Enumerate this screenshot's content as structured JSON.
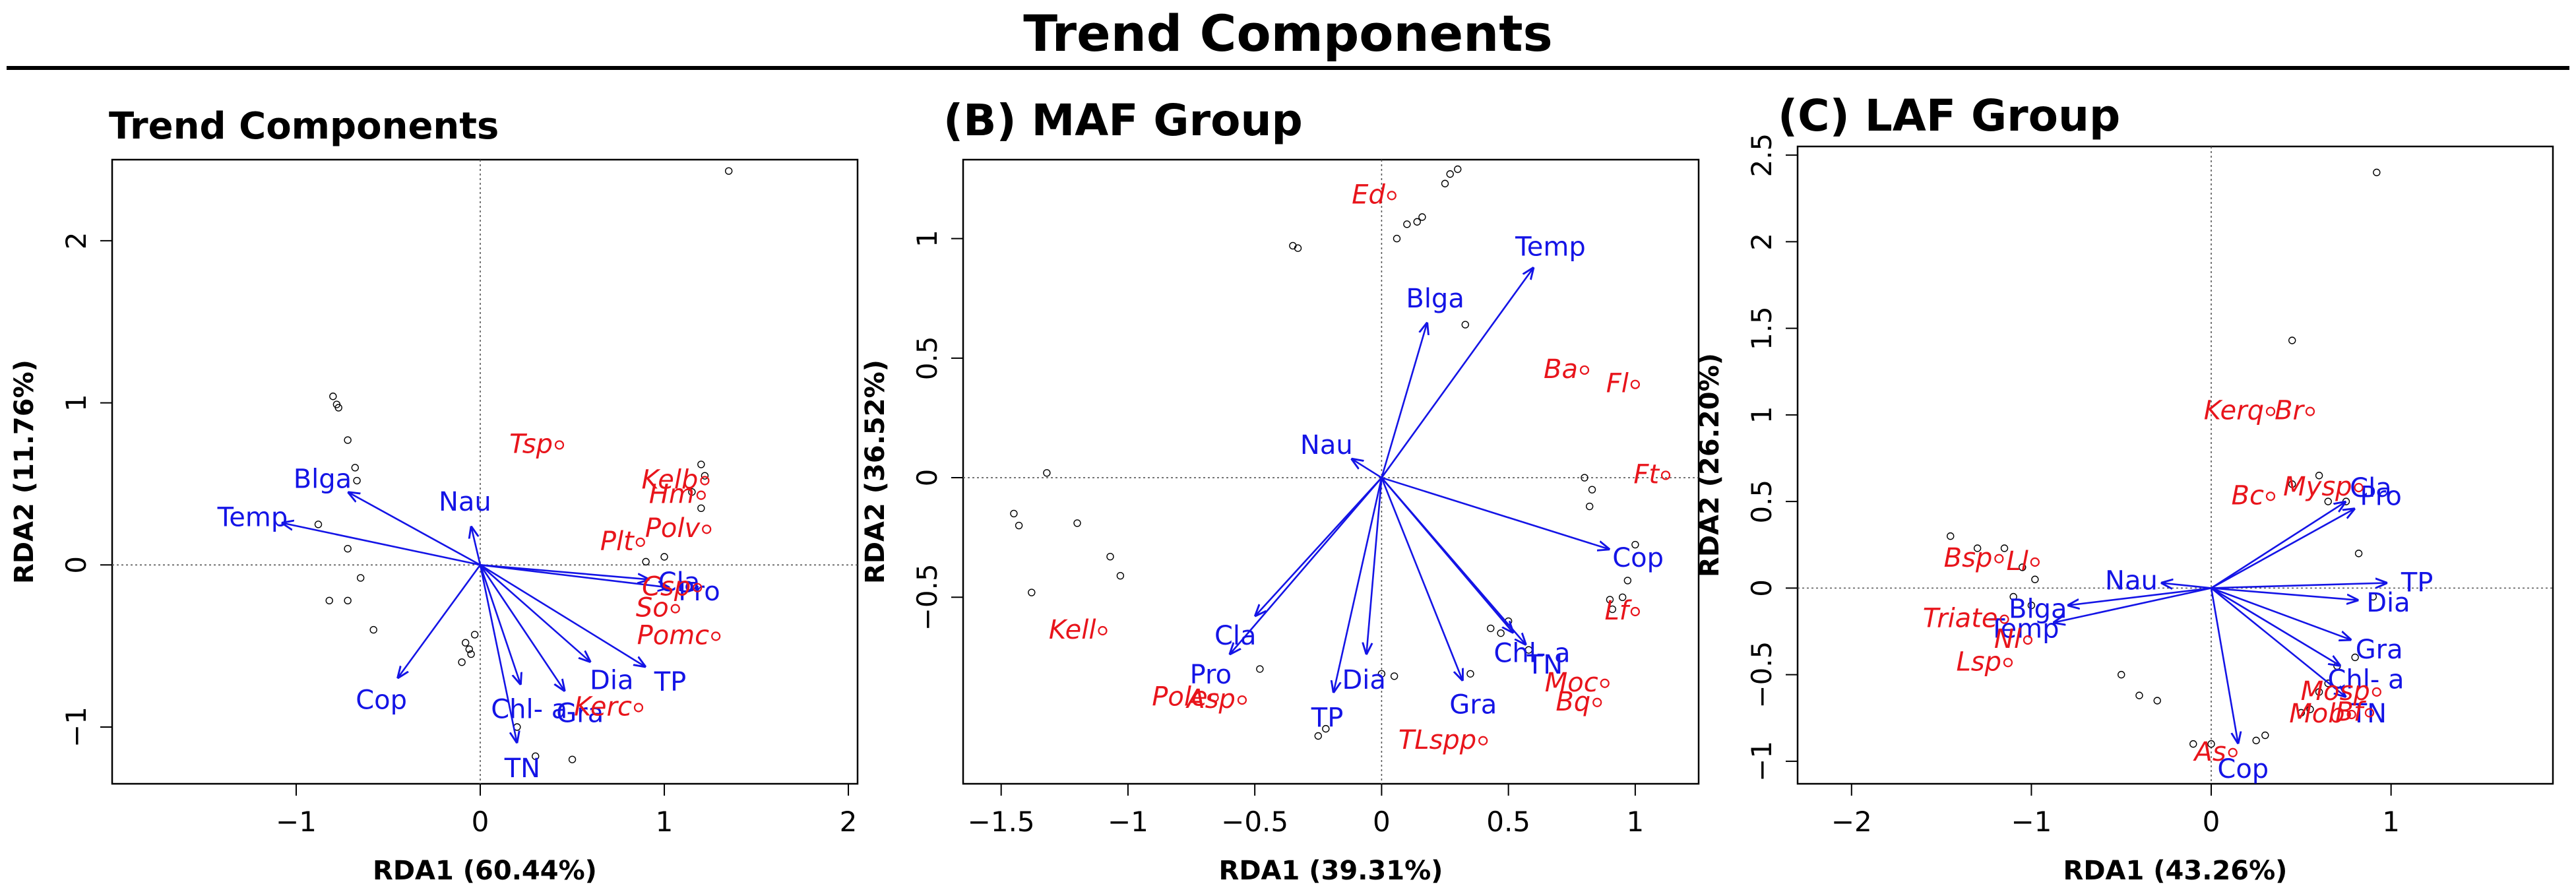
{
  "figure": {
    "title": "Trend Components",
    "colors": {
      "species": "#e8141b",
      "arrow": "#1414e6",
      "site": "#000000",
      "axis": "#000000"
    }
  },
  "chart_data": [
    {
      "type": "scatter",
      "title": "Trend Components",
      "xlabel": "RDA1 (60.44%)",
      "ylabel": "RDA2 (11.76%)",
      "xlim": [
        -2.0,
        2.05
      ],
      "ylim": [
        -1.35,
        2.5
      ],
      "xticks": [
        -1,
        0,
        1,
        2
      ],
      "yticks": [
        -1,
        0,
        1,
        2
      ],
      "reference_lines": [
        0,
        0
      ],
      "sites": [
        [
          -0.8,
          1.04
        ],
        [
          -0.78,
          0.99
        ],
        [
          -0.77,
          0.97
        ],
        [
          -0.72,
          0.77
        ],
        [
          -0.68,
          0.6
        ],
        [
          -0.67,
          0.52
        ],
        [
          -0.88,
          0.25
        ],
        [
          -0.72,
          0.1
        ],
        [
          -0.65,
          -0.08
        ],
        [
          -0.58,
          -0.4
        ],
        [
          -0.82,
          -0.22
        ],
        [
          -0.72,
          -0.22
        ],
        [
          -0.08,
          -0.48
        ],
        [
          -0.06,
          -0.52
        ],
        [
          -0.05,
          -0.55
        ],
        [
          -0.03,
          -0.43
        ],
        [
          -0.1,
          -0.6
        ],
        [
          0.2,
          -1.0
        ],
        [
          0.3,
          -1.18
        ],
        [
          0.5,
          -1.2
        ],
        [
          1.2,
          0.62
        ],
        [
          1.22,
          0.55
        ],
        [
          1.15,
          0.45
        ],
        [
          1.2,
          0.35
        ],
        [
          1.35,
          2.43
        ],
        [
          0.9,
          0.02
        ],
        [
          1.0,
          0.05
        ]
      ],
      "species": [
        {
          "label": "Tsp",
          "x": 0.43,
          "y": 0.74
        },
        {
          "label": "Kelb",
          "x": 1.22,
          "y": 0.52
        },
        {
          "label": "Hm",
          "x": 1.2,
          "y": 0.43
        },
        {
          "label": "Polv",
          "x": 1.23,
          "y": 0.22
        },
        {
          "label": "Plt",
          "x": 0.87,
          "y": 0.14
        },
        {
          "label": "Csp",
          "x": 1.18,
          "y": -0.14
        },
        {
          "label": "So",
          "x": 1.06,
          "y": -0.27
        },
        {
          "label": "Pomc",
          "x": 1.28,
          "y": -0.44
        },
        {
          "label": "Kerc",
          "x": 0.86,
          "y": -0.88
        }
      ],
      "variables": [
        {
          "label": "Blga",
          "x": -0.72,
          "y": 0.45
        },
        {
          "label": "Temp",
          "x": -1.08,
          "y": 0.26
        },
        {
          "label": "Nau",
          "x": -0.05,
          "y": 0.24
        },
        {
          "label": "Cop",
          "x": -0.45,
          "y": -0.7
        },
        {
          "label": "Cla",
          "x": 0.92,
          "y": -0.09
        },
        {
          "label": "Pro",
          "x": 1.03,
          "y": -0.14
        },
        {
          "label": "Chl- a",
          "x": 0.22,
          "y": -0.74
        },
        {
          "label": "Dia",
          "x": 0.6,
          "y": -0.6
        },
        {
          "label": "TP",
          "x": 0.9,
          "y": -0.63
        },
        {
          "label": "Gra",
          "x": 0.46,
          "y": -0.78
        },
        {
          "label": "TN",
          "x": 0.2,
          "y": -1.1
        }
      ]
    },
    {
      "type": "scatter",
      "title": "(B) MAF Group",
      "xlabel": "RDA1 (39.31%)",
      "ylabel": "RDA2 (36.52%)",
      "xlim": [
        -1.65,
        1.25
      ],
      "ylim": [
        -1.28,
        1.33
      ],
      "xticks": [
        -1.5,
        -1.0,
        -0.5,
        0.0,
        0.5,
        1.0
      ],
      "yticks": [
        -0.5,
        0.0,
        0.5,
        1.0
      ],
      "reference_lines": [
        0,
        0
      ],
      "sites": [
        [
          -1.32,
          0.02
        ],
        [
          -1.45,
          -0.15
        ],
        [
          -1.43,
          -0.2
        ],
        [
          -1.2,
          -0.19
        ],
        [
          -1.07,
          -0.33
        ],
        [
          -1.03,
          -0.41
        ],
        [
          -1.38,
          -0.48
        ],
        [
          -0.35,
          0.97
        ],
        [
          -0.33,
          0.96
        ],
        [
          0.06,
          1.0
        ],
        [
          0.1,
          1.06
        ],
        [
          0.14,
          1.07
        ],
        [
          0.16,
          1.09
        ],
        [
          0.25,
          1.23
        ],
        [
          0.27,
          1.27
        ],
        [
          0.3,
          1.29
        ],
        [
          0.33,
          0.64
        ],
        [
          0.0,
          -0.82
        ],
        [
          0.05,
          -0.83
        ],
        [
          -0.48,
          -0.8
        ],
        [
          -0.25,
          -1.08
        ],
        [
          -0.22,
          -1.05
        ],
        [
          0.35,
          -0.82
        ],
        [
          0.43,
          -0.63
        ],
        [
          0.5,
          -0.6
        ],
        [
          0.47,
          -0.65
        ],
        [
          0.58,
          -0.72
        ],
        [
          0.9,
          -0.51
        ],
        [
          0.91,
          -0.55
        ],
        [
          0.97,
          -0.43
        ],
        [
          1.0,
          -0.28
        ],
        [
          0.95,
          -0.5
        ],
        [
          0.8,
          0.0
        ],
        [
          0.83,
          -0.05
        ],
        [
          0.82,
          -0.12
        ]
      ],
      "species": [
        {
          "label": "Ed",
          "x": 0.04,
          "y": 1.18
        },
        {
          "label": "Ba",
          "x": 0.8,
          "y": 0.45
        },
        {
          "label": "Fl",
          "x": 1.0,
          "y": 0.39
        },
        {
          "label": "Ft",
          "x": 1.12,
          "y": 0.01
        },
        {
          "label": "Lf",
          "x": 1.0,
          "y": -0.56
        },
        {
          "label": "Moc",
          "x": 0.88,
          "y": -0.86
        },
        {
          "label": "Bq",
          "x": 0.85,
          "y": -0.94
        },
        {
          "label": "Kell",
          "x": -1.1,
          "y": -0.64
        },
        {
          "label": "Pole",
          "x": -0.66,
          "y": -0.92
        },
        {
          "label": "Asp",
          "x": -0.55,
          "y": -0.93
        },
        {
          "label": "TLspp",
          "x": 0.4,
          "y": -1.1
        }
      ],
      "variables": [
        {
          "label": "Blga",
          "x": 0.18,
          "y": 0.65
        },
        {
          "label": "Temp",
          "x": 0.6,
          "y": 0.88
        },
        {
          "label": "Nau",
          "x": -0.12,
          "y": 0.08
        },
        {
          "label": "Cop",
          "x": 0.9,
          "y": -0.3
        },
        {
          "label": "Cla",
          "x": -0.5,
          "y": -0.58
        },
        {
          "label": "Pro",
          "x": -0.6,
          "y": -0.74
        },
        {
          "label": "Dia",
          "x": -0.06,
          "y": -0.74
        },
        {
          "label": "TP",
          "x": -0.19,
          "y": -0.9
        },
        {
          "label": "Gra",
          "x": 0.32,
          "y": -0.85
        },
        {
          "label": "Chl- a",
          "x": 0.52,
          "y": -0.65
        },
        {
          "label": "TN",
          "x": 0.57,
          "y": -0.7
        }
      ]
    },
    {
      "type": "scatter",
      "title": "(C) LAF Group",
      "xlabel": "RDA1 (43.26%)",
      "ylabel": "RDA2 (26.20%)",
      "xlim": [
        -2.3,
        1.9
      ],
      "ylim": [
        -1.13,
        2.55
      ],
      "xticks": [
        -2,
        -1,
        0,
        1
      ],
      "yticks": [
        -1.0,
        -0.5,
        0.0,
        0.5,
        1.0,
        1.5,
        2.0,
        2.5
      ],
      "reference_lines": [
        0,
        0
      ],
      "sites": [
        [
          -1.45,
          0.3
        ],
        [
          -1.3,
          0.23
        ],
        [
          -1.15,
          0.23
        ],
        [
          -1.05,
          0.12
        ],
        [
          -1.0,
          -0.1
        ],
        [
          -0.98,
          0.05
        ],
        [
          -1.1,
          -0.05
        ],
        [
          -0.5,
          -0.5
        ],
        [
          -0.4,
          -0.62
        ],
        [
          -0.3,
          -0.65
        ],
        [
          -0.1,
          -0.9
        ],
        [
          0.0,
          -0.9
        ],
        [
          0.25,
          -0.88
        ],
        [
          0.3,
          -0.85
        ],
        [
          0.5,
          -0.72
        ],
        [
          0.55,
          -0.7
        ],
        [
          0.6,
          -0.6
        ],
        [
          0.65,
          -0.55
        ],
        [
          0.7,
          -0.45
        ],
        [
          0.8,
          -0.4
        ],
        [
          0.45,
          1.43
        ],
        [
          0.92,
          2.4
        ],
        [
          0.45,
          0.6
        ],
        [
          0.6,
          0.65
        ],
        [
          0.65,
          0.5
        ],
        [
          0.75,
          0.5
        ],
        [
          0.82,
          0.2
        ],
        [
          0.9,
          -0.05
        ]
      ],
      "species": [
        {
          "label": "Kerq",
          "x": 0.33,
          "y": 1.02
        },
        {
          "label": "Br",
          "x": 0.55,
          "y": 1.02
        },
        {
          "label": "Bc",
          "x": 0.33,
          "y": 0.53
        },
        {
          "label": "Mysp",
          "x": 0.82,
          "y": 0.58
        },
        {
          "label": "Bsp",
          "x": -1.18,
          "y": 0.17
        },
        {
          "label": "Ll",
          "x": -0.98,
          "y": 0.15
        },
        {
          "label": "Triate",
          "x": -1.15,
          "y": -0.18
        },
        {
          "label": "Nl",
          "x": -1.02,
          "y": -0.3
        },
        {
          "label": "Lsp",
          "x": -1.13,
          "y": -0.43
        },
        {
          "label": "Mosp",
          "x": 0.92,
          "y": -0.6
        },
        {
          "label": "Bf",
          "x": 0.88,
          "y": -0.72
        },
        {
          "label": "Mob",
          "x": 0.78,
          "y": -0.73
        },
        {
          "label": "As",
          "x": 0.12,
          "y": -0.95
        }
      ],
      "variables": [
        {
          "label": "Cla",
          "x": 0.75,
          "y": 0.5
        },
        {
          "label": "Pro",
          "x": 0.8,
          "y": 0.46
        },
        {
          "label": "Nau",
          "x": -0.28,
          "y": 0.03
        },
        {
          "label": "TP",
          "x": 0.98,
          "y": 0.03
        },
        {
          "label": "Dia",
          "x": 0.82,
          "y": -0.07
        },
        {
          "label": "Blga",
          "x": -0.8,
          "y": -0.1
        },
        {
          "label": "Temp",
          "x": -0.88,
          "y": -0.2
        },
        {
          "label": "Gra",
          "x": 0.78,
          "y": -0.3
        },
        {
          "label": "Chl- a",
          "x": 0.72,
          "y": -0.45
        },
        {
          "label": "TN",
          "x": 0.75,
          "y": -0.63
        },
        {
          "label": "Cop",
          "x": 0.15,
          "y": -0.9
        }
      ]
    }
  ]
}
